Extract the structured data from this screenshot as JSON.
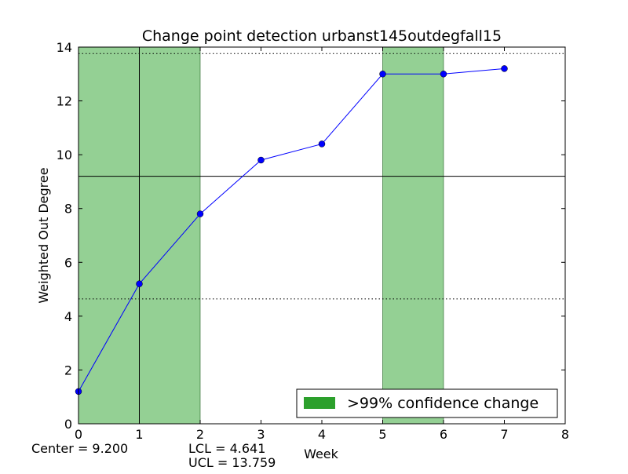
{
  "chart_data": {
    "type": "line",
    "title": "Change point detection urbanst145outdegfall15",
    "xlabel": "Week",
    "ylabel": "Weighted Out Degree",
    "xlim": [
      0,
      8
    ],
    "ylim": [
      0,
      14
    ],
    "xticks": [
      0,
      1,
      2,
      3,
      4,
      5,
      6,
      7,
      8
    ],
    "yticks": [
      0,
      2,
      4,
      6,
      8,
      10,
      12,
      14
    ],
    "grid": false,
    "series": [
      {
        "x": [
          0,
          1,
          2,
          3,
          4,
          5,
          6,
          7
        ],
        "values": [
          1.2,
          5.2,
          7.8,
          9.8,
          10.4,
          13.0,
          13.0,
          13.2
        ]
      }
    ],
    "center_line": 9.2,
    "lcl": 4.641,
    "ucl": 13.759,
    "change_point_line_x": 1,
    "shaded_regions": [
      [
        0,
        2
      ],
      [
        5,
        6
      ]
    ],
    "legend": {
      "label": ">99% confidence change",
      "placement": "lower-right"
    },
    "stats": {
      "center_text": "Center = 9.200",
      "lcl_text": "LCL = 4.641",
      "ucl_text": "UCL = 13.759"
    },
    "colors": {
      "series": "#0000ff",
      "shade": "#2ca02c",
      "shade_fill": "#94d094",
      "lines": "#000000"
    }
  }
}
